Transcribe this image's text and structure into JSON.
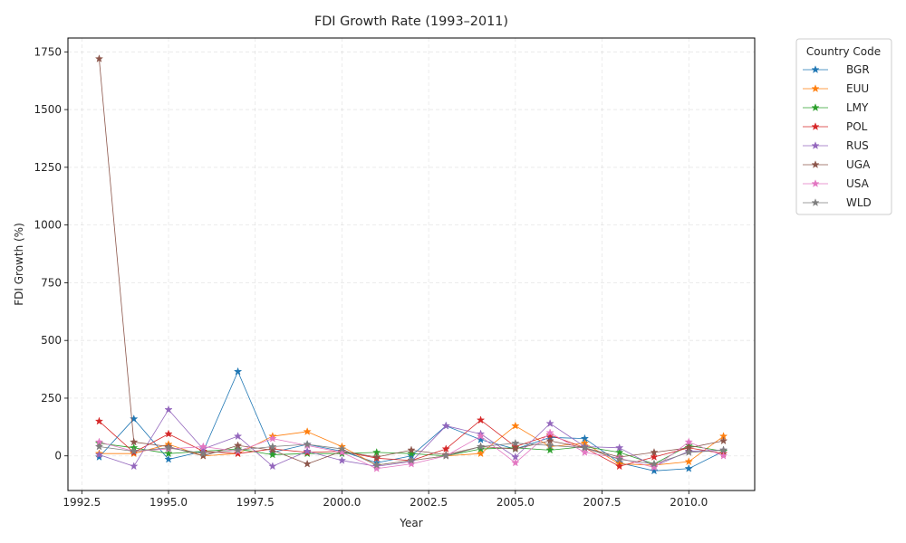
{
  "chart_data": {
    "type": "line",
    "title": "FDI Growth Rate (1993–2011)",
    "xlabel": "Year",
    "ylabel": "FDI Growth (%)",
    "xlim": [
      1992.1,
      2011.9
    ],
    "ylim": [
      -150,
      1810
    ],
    "xticks": [
      1992.5,
      1995.0,
      1997.5,
      2000.0,
      2002.5,
      2005.0,
      2007.5,
      2010.0
    ],
    "xtick_labels": [
      "1992.5",
      "1995.0",
      "1997.5",
      "2000.0",
      "2002.5",
      "2005.0",
      "2007.5",
      "2010.0"
    ],
    "yticks": [
      0,
      250,
      500,
      750,
      1000,
      1250,
      1500,
      1750
    ],
    "ytick_labels": [
      "0",
      "250",
      "500",
      "750",
      "1000",
      "1250",
      "1500",
      "1750"
    ],
    "grid": true,
    "legend": {
      "title": "Country Code",
      "placement": "outside-top-right"
    },
    "marker": "star",
    "x": [
      1993,
      1994,
      1995,
      1996,
      1997,
      1998,
      1999,
      2000,
      2001,
      2002,
      2003,
      2004,
      2005,
      2006,
      2007,
      2008,
      2009,
      2010,
      2011
    ],
    "series": [
      {
        "name": "BGR",
        "color": "#1f77b4",
        "values": [
          -5,
          160,
          -15,
          20,
          365,
          15,
          50,
          20,
          -30,
          0,
          130,
          70,
          30,
          80,
          75,
          -30,
          -65,
          -55,
          20
        ]
      },
      {
        "name": "EUU",
        "color": "#ff7f0e",
        "values": [
          10,
          10,
          50,
          0,
          10,
          85,
          105,
          40,
          -40,
          -20,
          0,
          10,
          130,
          40,
          55,
          -35,
          -40,
          -25,
          85
        ]
      },
      {
        "name": "LMY",
        "color": "#2ca02c",
        "values": [
          55,
          35,
          10,
          20,
          30,
          5,
          10,
          10,
          15,
          10,
          0,
          30,
          35,
          25,
          40,
          15,
          -35,
          45,
          20
        ]
      },
      {
        "name": "POL",
        "color": "#d62728",
        "values": [
          150,
          15,
          95,
          20,
          10,
          30,
          15,
          20,
          -10,
          -20,
          30,
          155,
          40,
          90,
          35,
          -45,
          -5,
          35,
          10
        ]
      },
      {
        "name": "RUS",
        "color": "#9467bd",
        "values": [
          5,
          -45,
          200,
          30,
          85,
          -45,
          20,
          -20,
          -45,
          -25,
          130,
          95,
          -5,
          140,
          40,
          35,
          -45,
          20,
          25
        ]
      },
      {
        "name": "UGA",
        "color": "#8c564b",
        "values": [
          1720,
          60,
          40,
          0,
          45,
          25,
          -35,
          20,
          -5,
          25,
          5,
          40,
          30,
          65,
          35,
          -5,
          15,
          35,
          65
        ]
      },
      {
        "name": "USA",
        "color": "#e377c2",
        "values": [
          60,
          20,
          30,
          40,
          20,
          75,
          45,
          15,
          -55,
          -35,
          0,
          85,
          -30,
          100,
          15,
          -10,
          -50,
          60,
          0
        ]
      },
      {
        "name": "WLD",
        "color": "#7f7f7f",
        "values": [
          40,
          20,
          35,
          10,
          25,
          40,
          50,
          30,
          -40,
          -20,
          0,
          40,
          55,
          45,
          35,
          -15,
          -35,
          15,
          25
        ]
      }
    ]
  }
}
